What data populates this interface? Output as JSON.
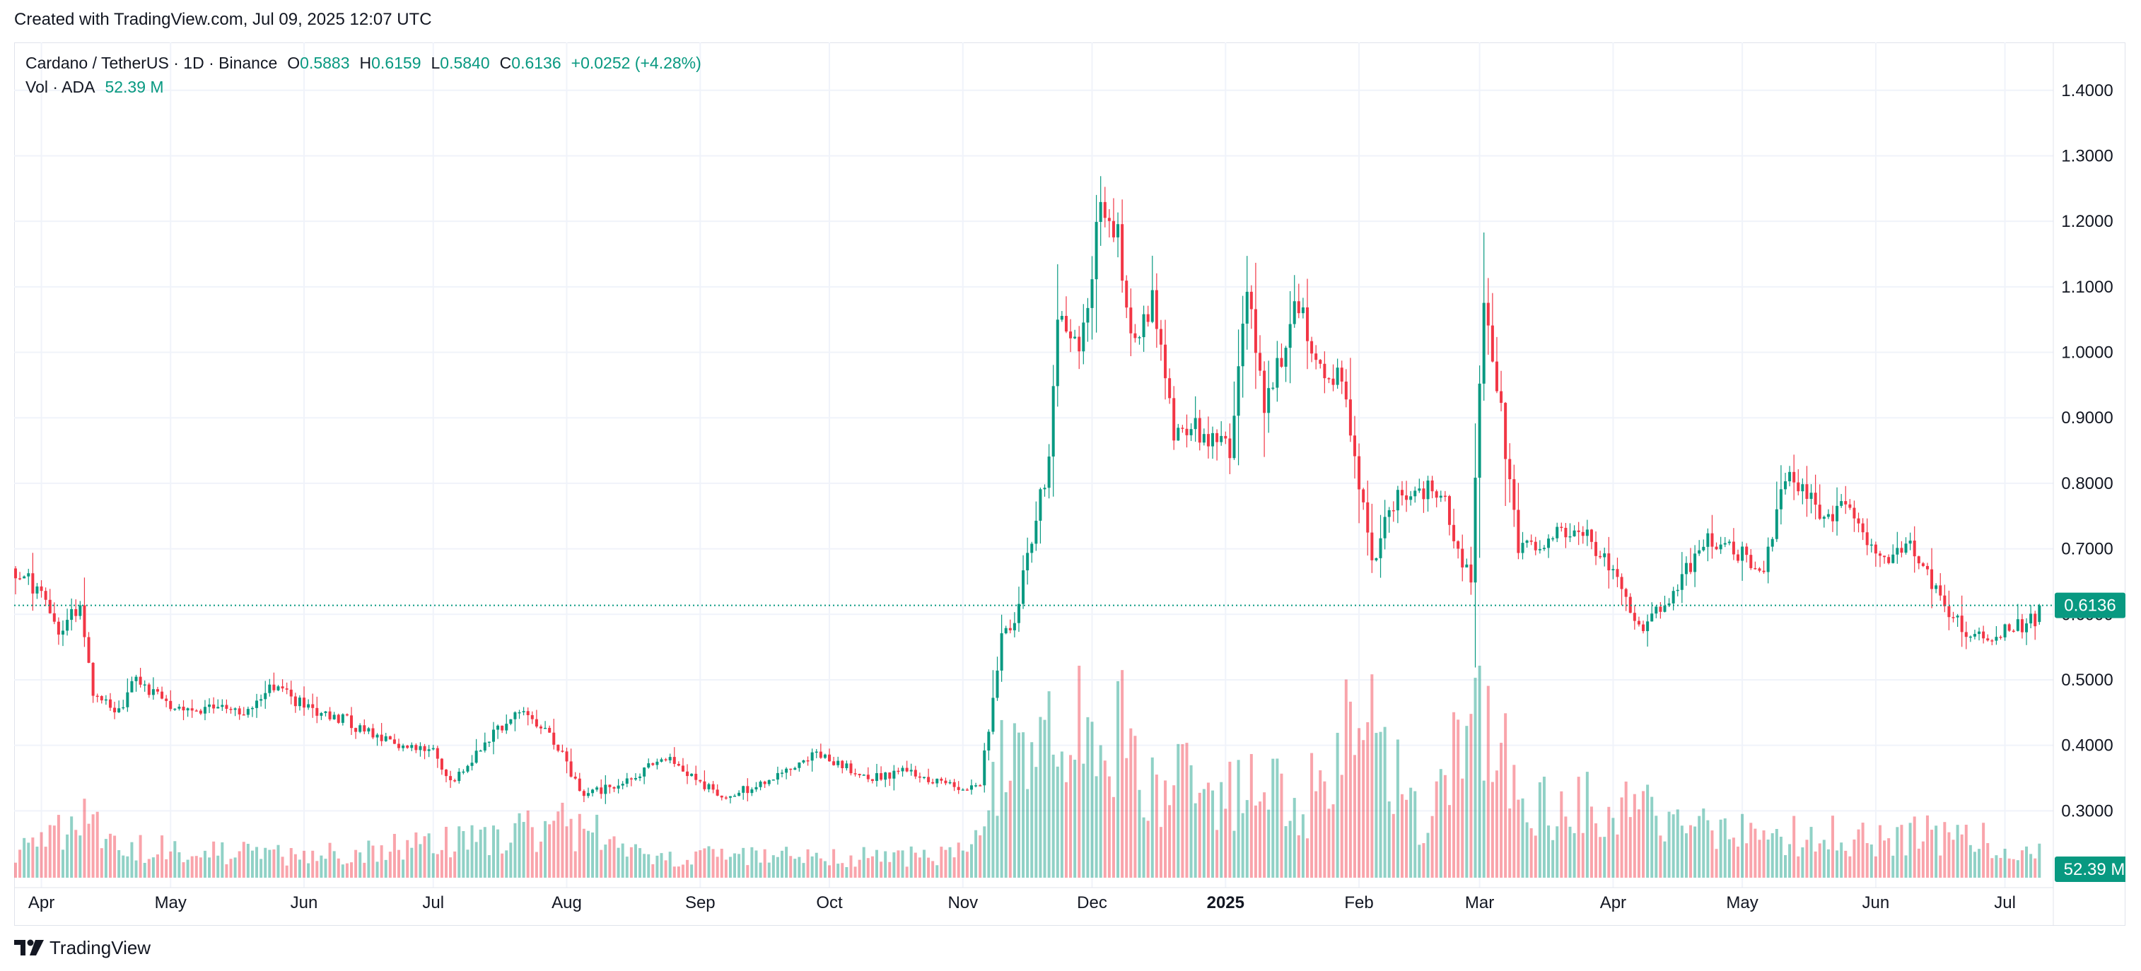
{
  "header": {
    "caption": "Created with TradingView.com, Jul 09, 2025 12:07 UTC"
  },
  "legend": {
    "symbol": "Cardano / TetherUS · 1D · Binance",
    "open_label": "O",
    "open": "0.5883",
    "high_label": "H",
    "high": "0.6159",
    "low_label": "L",
    "low": "0.5840",
    "close_label": "C",
    "close": "0.6136",
    "change": "+0.0252 (+4.28%)",
    "volume_label": "Vol · ADA",
    "volume": "52.39 M"
  },
  "brand": {
    "name": "TradingView"
  },
  "colors": {
    "up": "#089981",
    "down": "#f23645",
    "grid": "#f0f3fa",
    "text": "#131722",
    "axis_border": "#e0e3eb"
  },
  "chart_data": {
    "type": "candlestick",
    "symbol": "Cardano / TetherUS",
    "interval": "1D",
    "exchange": "Binance",
    "ylim": [
      0.2,
      1.43
    ],
    "y_ticks": [
      "1.4000",
      "1.3000",
      "1.2000",
      "1.1000",
      "1.0000",
      "0.9000",
      "0.8000",
      "0.7000",
      "0.6000",
      "0.5000",
      "0.4000",
      "0.3000"
    ],
    "x_ticks": [
      "Apr",
      "May",
      "Jun",
      "Jul",
      "Aug",
      "Sep",
      "Oct",
      "Nov",
      "Dec",
      "2025",
      "Feb",
      "Mar",
      "Apr",
      "May",
      "Jun",
      "Jul"
    ],
    "x_ticks_bold": [
      "2025"
    ],
    "last_price": 0.6136,
    "last_price_label": "0.6136",
    "last_volume_label": "52.39 M",
    "grid": true,
    "legend_position": "top-left",
    "price_anchors": [
      [
        "2024-03-26",
        0.67
      ],
      [
        "2024-04-01",
        0.63
      ],
      [
        "2024-04-05",
        0.58
      ],
      [
        "2024-04-10",
        0.61
      ],
      [
        "2024-04-13",
        0.47
      ],
      [
        "2024-04-19",
        0.45
      ],
      [
        "2024-04-23",
        0.51
      ],
      [
        "2024-05-01",
        0.45
      ],
      [
        "2024-05-10",
        0.46
      ],
      [
        "2024-05-20",
        0.45
      ],
      [
        "2024-05-25",
        0.49
      ],
      [
        "2024-06-01",
        0.46
      ],
      [
        "2024-06-10",
        0.44
      ],
      [
        "2024-06-18",
        0.41
      ],
      [
        "2024-06-25",
        0.4
      ],
      [
        "2024-07-01",
        0.39
      ],
      [
        "2024-07-05",
        0.34
      ],
      [
        "2024-07-10",
        0.38
      ],
      [
        "2024-07-20",
        0.45
      ],
      [
        "2024-07-28",
        0.42
      ],
      [
        "2024-08-05",
        0.32
      ],
      [
        "2024-08-12",
        0.34
      ],
      [
        "2024-08-25",
        0.38
      ],
      [
        "2024-09-06",
        0.32
      ],
      [
        "2024-09-15",
        0.34
      ],
      [
        "2024-09-28",
        0.39
      ],
      [
        "2024-10-10",
        0.35
      ],
      [
        "2024-10-20",
        0.36
      ],
      [
        "2024-11-01",
        0.33
      ],
      [
        "2024-11-05",
        0.34
      ],
      [
        "2024-11-10",
        0.56
      ],
      [
        "2024-11-13",
        0.59
      ],
      [
        "2024-11-17",
        0.72
      ],
      [
        "2024-11-21",
        0.83
      ],
      [
        "2024-11-23",
        1.05
      ],
      [
        "2024-11-28",
        1.0
      ],
      [
        "2024-12-03",
        1.22
      ],
      [
        "2024-12-07",
        1.17
      ],
      [
        "2024-12-10",
        1.02
      ],
      [
        "2024-12-15",
        1.08
      ],
      [
        "2024-12-20",
        0.88
      ],
      [
        "2024-12-27",
        0.88
      ],
      [
        "2025-01-02",
        0.85
      ],
      [
        "2025-01-06",
        1.1
      ],
      [
        "2025-01-10",
        0.92
      ],
      [
        "2025-01-18",
        1.08
      ],
      [
        "2025-01-22",
        0.99
      ],
      [
        "2025-01-28",
        0.96
      ],
      [
        "2025-02-01",
        0.8
      ],
      [
        "2025-02-04",
        0.68
      ],
      [
        "2025-02-10",
        0.79
      ],
      [
        "2025-02-20",
        0.79
      ],
      [
        "2025-02-27",
        0.64
      ],
      [
        "2025-03-02",
        1.1
      ],
      [
        "2025-03-05",
        0.96
      ],
      [
        "2025-03-10",
        0.7
      ],
      [
        "2025-03-17",
        0.72
      ],
      [
        "2025-03-25",
        0.73
      ],
      [
        "2025-04-01",
        0.66
      ],
      [
        "2025-04-07",
        0.58
      ],
      [
        "2025-04-15",
        0.63
      ],
      [
        "2025-04-22",
        0.71
      ],
      [
        "2025-05-01",
        0.69
      ],
      [
        "2025-05-06",
        0.67
      ],
      [
        "2025-05-10",
        0.79
      ],
      [
        "2025-05-13",
        0.81
      ],
      [
        "2025-05-20",
        0.75
      ],
      [
        "2025-05-25",
        0.76
      ],
      [
        "2025-06-01",
        0.69
      ],
      [
        "2025-06-10",
        0.7
      ],
      [
        "2025-06-15",
        0.63
      ],
      [
        "2025-06-22",
        0.57
      ],
      [
        "2025-06-29",
        0.57
      ],
      [
        "2025-07-03",
        0.58
      ],
      [
        "2025-07-08",
        0.59
      ],
      [
        "2025-07-09",
        0.6136
      ]
    ],
    "volume_profile": [
      [
        "2024-03-26",
        14
      ],
      [
        "2024-04-13",
        30
      ],
      [
        "2024-04-20",
        16
      ],
      [
        "2024-06-01",
        11
      ],
      [
        "2024-07-05",
        18
      ],
      [
        "2024-08-05",
        28
      ],
      [
        "2024-08-20",
        11
      ],
      [
        "2024-10-25",
        11
      ],
      [
        "2024-11-05",
        18
      ],
      [
        "2024-11-12",
        80
      ],
      [
        "2024-11-22",
        90
      ],
      [
        "2024-12-05",
        85
      ],
      [
        "2024-12-15",
        50
      ],
      [
        "2025-01-05",
        45
      ],
      [
        "2025-01-20",
        40
      ],
      [
        "2025-02-03",
        90
      ],
      [
        "2025-02-15",
        25
      ],
      [
        "2025-03-03",
        95
      ],
      [
        "2025-03-10",
        40
      ],
      [
        "2025-04-07",
        35
      ],
      [
        "2025-05-10",
        22
      ],
      [
        "2025-06-22",
        22
      ],
      [
        "2025-07-09",
        12
      ]
    ]
  }
}
